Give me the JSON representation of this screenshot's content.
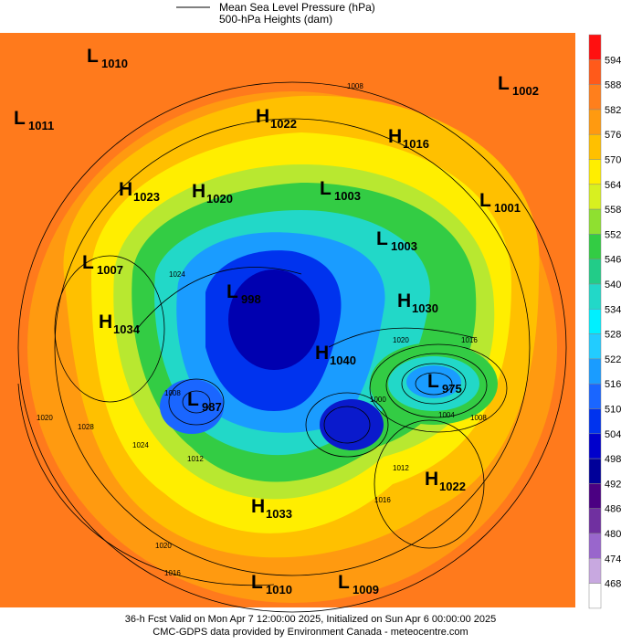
{
  "header": {
    "line1": "Mean Sea Level Pressure (hPa)",
    "line2": "500-hPa Heights (dam)"
  },
  "colorbar": {
    "labels": [
      "594",
      "588",
      "582",
      "576",
      "570",
      "564",
      "558",
      "552",
      "546",
      "540",
      "534",
      "528",
      "522",
      "516",
      "510",
      "504",
      "498",
      "492",
      "486",
      "480",
      "474",
      "468"
    ]
  },
  "centers": [
    {
      "letter": "L",
      "value": "1010"
    },
    {
      "letter": "L",
      "value": "1011"
    },
    {
      "letter": "H",
      "value": "1022"
    },
    {
      "letter": "H",
      "value": "1016"
    },
    {
      "letter": "L",
      "value": "1002"
    },
    {
      "letter": "H",
      "value": "1023"
    },
    {
      "letter": "H",
      "value": "1020"
    },
    {
      "letter": "L",
      "value": "1003"
    },
    {
      "letter": "L",
      "value": "1001"
    },
    {
      "letter": "L",
      "value": "1003"
    },
    {
      "letter": "L",
      "value": "1007"
    },
    {
      "letter": "L",
      "value": "998"
    },
    {
      "letter": "H",
      "value": "1030"
    },
    {
      "letter": "H",
      "value": "1034"
    },
    {
      "letter": "H",
      "value": "1040"
    },
    {
      "letter": "L",
      "value": "975"
    },
    {
      "letter": "L",
      "value": "987"
    },
    {
      "letter": "H",
      "value": "1022"
    },
    {
      "letter": "H",
      "value": "1033"
    },
    {
      "letter": "L",
      "value": "1010"
    },
    {
      "letter": "L",
      "value": "1009"
    }
  ],
  "contour_labels": [
    "1008",
    "1024",
    "1016",
    "1020",
    "1004",
    "1008",
    "1000",
    "1012",
    "1024",
    "1028",
    "1020",
    "1016",
    "1020",
    "1012",
    "1016",
    "1008"
  ],
  "footer": {
    "line1": "36-h Fcst Valid on Mon Apr  7 12:00:00 2025, Initialized on Sun Apr  6 00:00:00 2025",
    "line2": "CMC-GDPS data provided by Environment Canada - meteocentre.com"
  }
}
